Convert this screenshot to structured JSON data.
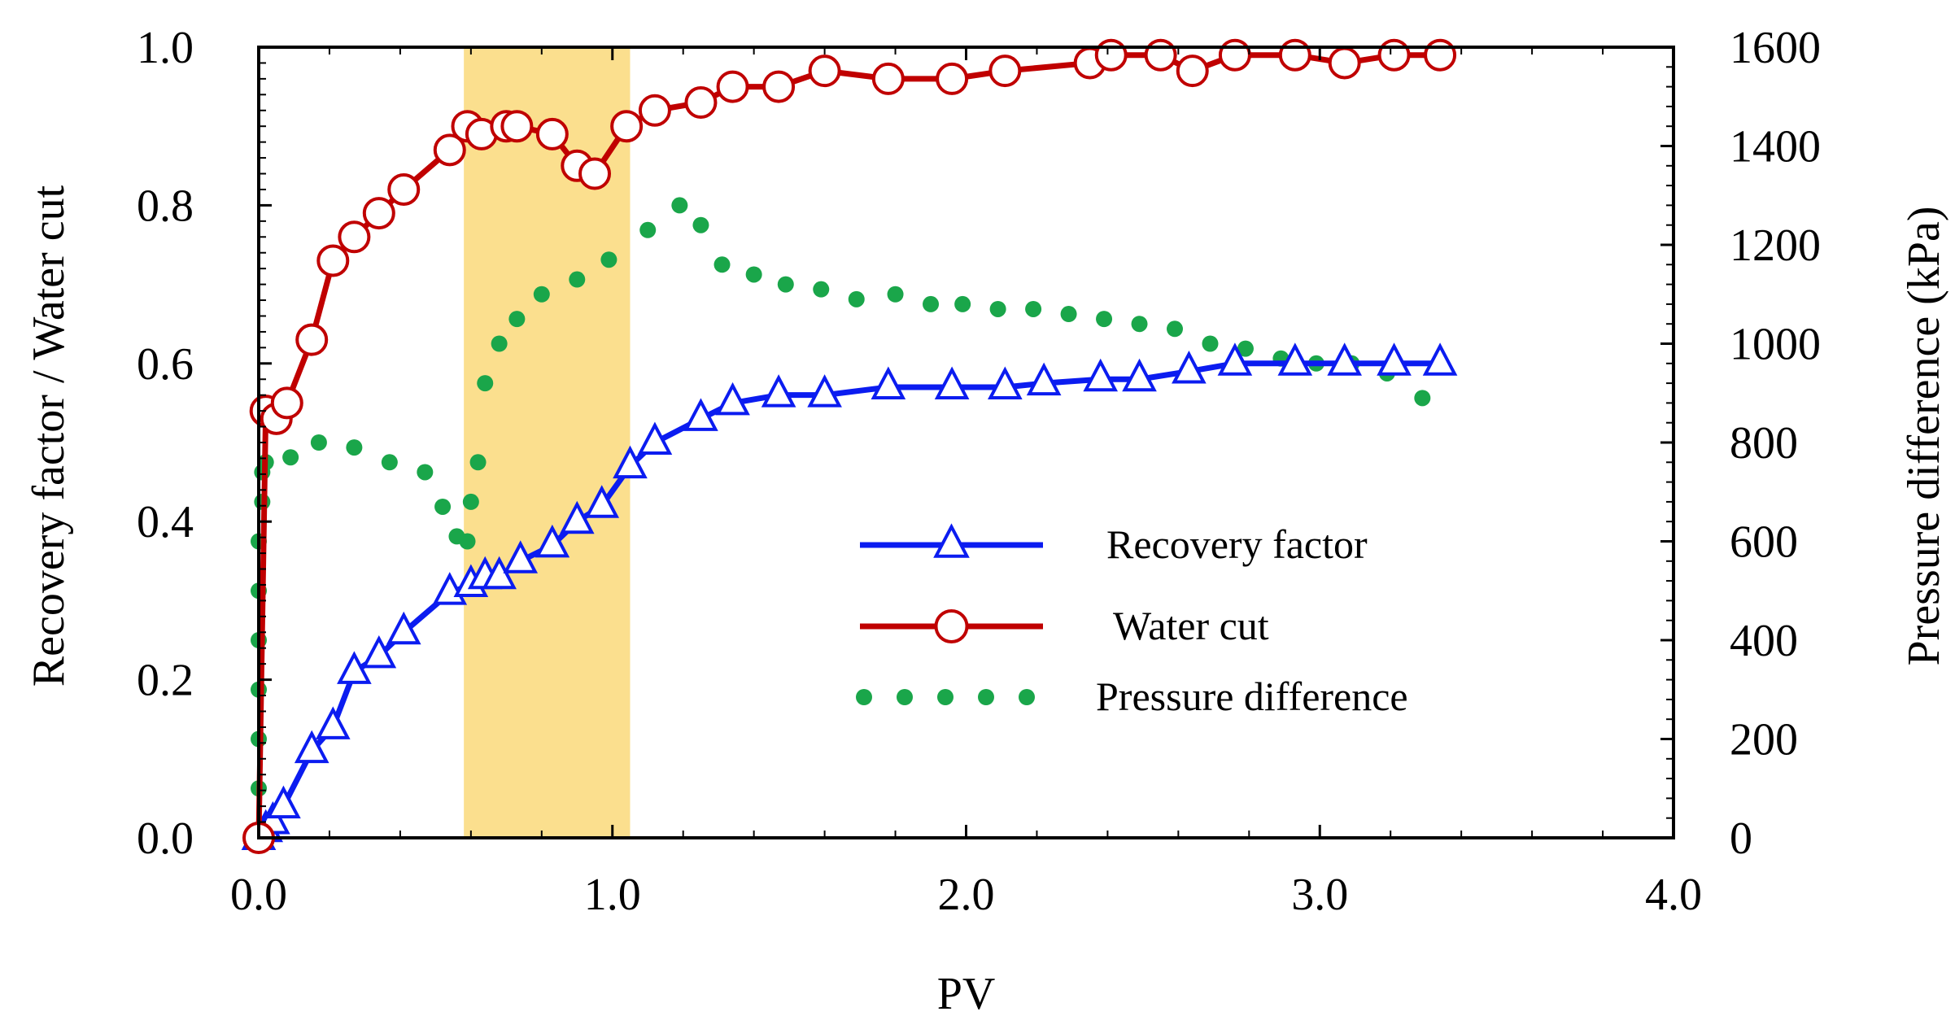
{
  "chart_data": {
    "type": "line",
    "xlabel": "PV",
    "ylabel_left": "Recovery factor / Water cut",
    "ylabel_right": "Pressure difference (kPa)",
    "xlim": [
      0,
      4.0
    ],
    "ylim_left": [
      0,
      1.0
    ],
    "ylim_right": [
      0,
      1600
    ],
    "x_ticks": [
      "0.0",
      "1.0",
      "2.0",
      "3.0",
      "4.0"
    ],
    "y_left_ticks": [
      "0.0",
      "0.2",
      "0.4",
      "0.6",
      "0.8",
      "1.0"
    ],
    "y_right_ticks": [
      "0",
      "200",
      "400",
      "600",
      "800",
      "1000",
      "1200",
      "1400",
      "1600"
    ],
    "grid": false,
    "legend_position": "center-right",
    "highlight_band": {
      "x_start": 0.58,
      "x_end": 1.05,
      "color": "#fbdf8e"
    },
    "series": [
      {
        "name": "Recovery factor",
        "axis": "left",
        "color": "#0b1cf0",
        "marker": "triangle",
        "x": [
          0.0,
          0.02,
          0.04,
          0.07,
          0.15,
          0.21,
          0.27,
          0.34,
          0.41,
          0.54,
          0.6,
          0.64,
          0.68,
          0.74,
          0.83,
          0.9,
          0.97,
          1.05,
          1.12,
          1.25,
          1.34,
          1.47,
          1.6,
          1.78,
          1.96,
          2.11,
          2.22,
          2.38,
          2.49,
          2.63,
          2.76,
          2.93,
          3.07,
          3.21,
          3.34
        ],
        "y": [
          0.0,
          0.01,
          0.02,
          0.04,
          0.11,
          0.14,
          0.21,
          0.23,
          0.26,
          0.31,
          0.32,
          0.33,
          0.33,
          0.35,
          0.37,
          0.4,
          0.42,
          0.47,
          0.5,
          0.53,
          0.55,
          0.56,
          0.56,
          0.57,
          0.57,
          0.57,
          0.575,
          0.58,
          0.58,
          0.59,
          0.6,
          0.6,
          0.6,
          0.6,
          0.6
        ]
      },
      {
        "name": "Water cut",
        "axis": "left",
        "color": "#c00000",
        "marker": "circle",
        "x": [
          0.0,
          0.02,
          0.05,
          0.08,
          0.15,
          0.21,
          0.27,
          0.34,
          0.41,
          0.54,
          0.59,
          0.63,
          0.7,
          0.73,
          0.83,
          0.9,
          0.95,
          1.04,
          1.12,
          1.25,
          1.34,
          1.47,
          1.6,
          1.78,
          1.96,
          2.11,
          2.35,
          2.41,
          2.55,
          2.64,
          2.76,
          2.93,
          3.07,
          3.21,
          3.34
        ],
        "y": [
          0.0,
          0.54,
          0.53,
          0.55,
          0.63,
          0.73,
          0.76,
          0.79,
          0.82,
          0.87,
          0.9,
          0.89,
          0.9,
          0.9,
          0.89,
          0.85,
          0.84,
          0.9,
          0.92,
          0.93,
          0.95,
          0.95,
          0.97,
          0.96,
          0.96,
          0.97,
          0.98,
          0.99,
          0.99,
          0.97,
          0.99,
          0.99,
          0.98,
          0.99,
          0.99
        ]
      },
      {
        "name": "Pressure difference",
        "axis": "right",
        "color": "#1aa64a",
        "marker": "dot",
        "x": [
          0.0,
          0.0,
          0.0,
          0.0,
          0.0,
          0.0,
          0.0,
          0.01,
          0.01,
          0.02,
          0.09,
          0.17,
          0.27,
          0.37,
          0.47,
          0.52,
          0.56,
          0.59,
          0.6,
          0.62,
          0.64,
          0.68,
          0.73,
          0.8,
          0.9,
          0.99,
          1.1,
          1.19,
          1.25,
          1.31,
          1.4,
          1.49,
          1.59,
          1.69,
          1.8,
          1.9,
          1.99,
          2.09,
          2.19,
          2.29,
          2.39,
          2.49,
          2.59,
          2.69,
          2.79,
          2.89,
          2.99,
          3.09,
          3.19,
          3.29
        ],
        "y": [
          0,
          100,
          200,
          300,
          400,
          500,
          600,
          680,
          740,
          760,
          770,
          800,
          790,
          760,
          740,
          670,
          610,
          600,
          680,
          760,
          920,
          1000,
          1050,
          1100,
          1130,
          1170,
          1230,
          1280,
          1240,
          1160,
          1140,
          1120,
          1110,
          1090,
          1100,
          1080,
          1080,
          1070,
          1070,
          1060,
          1050,
          1040,
          1030,
          1000,
          990,
          970,
          960,
          960,
          940,
          890
        ]
      }
    ]
  }
}
